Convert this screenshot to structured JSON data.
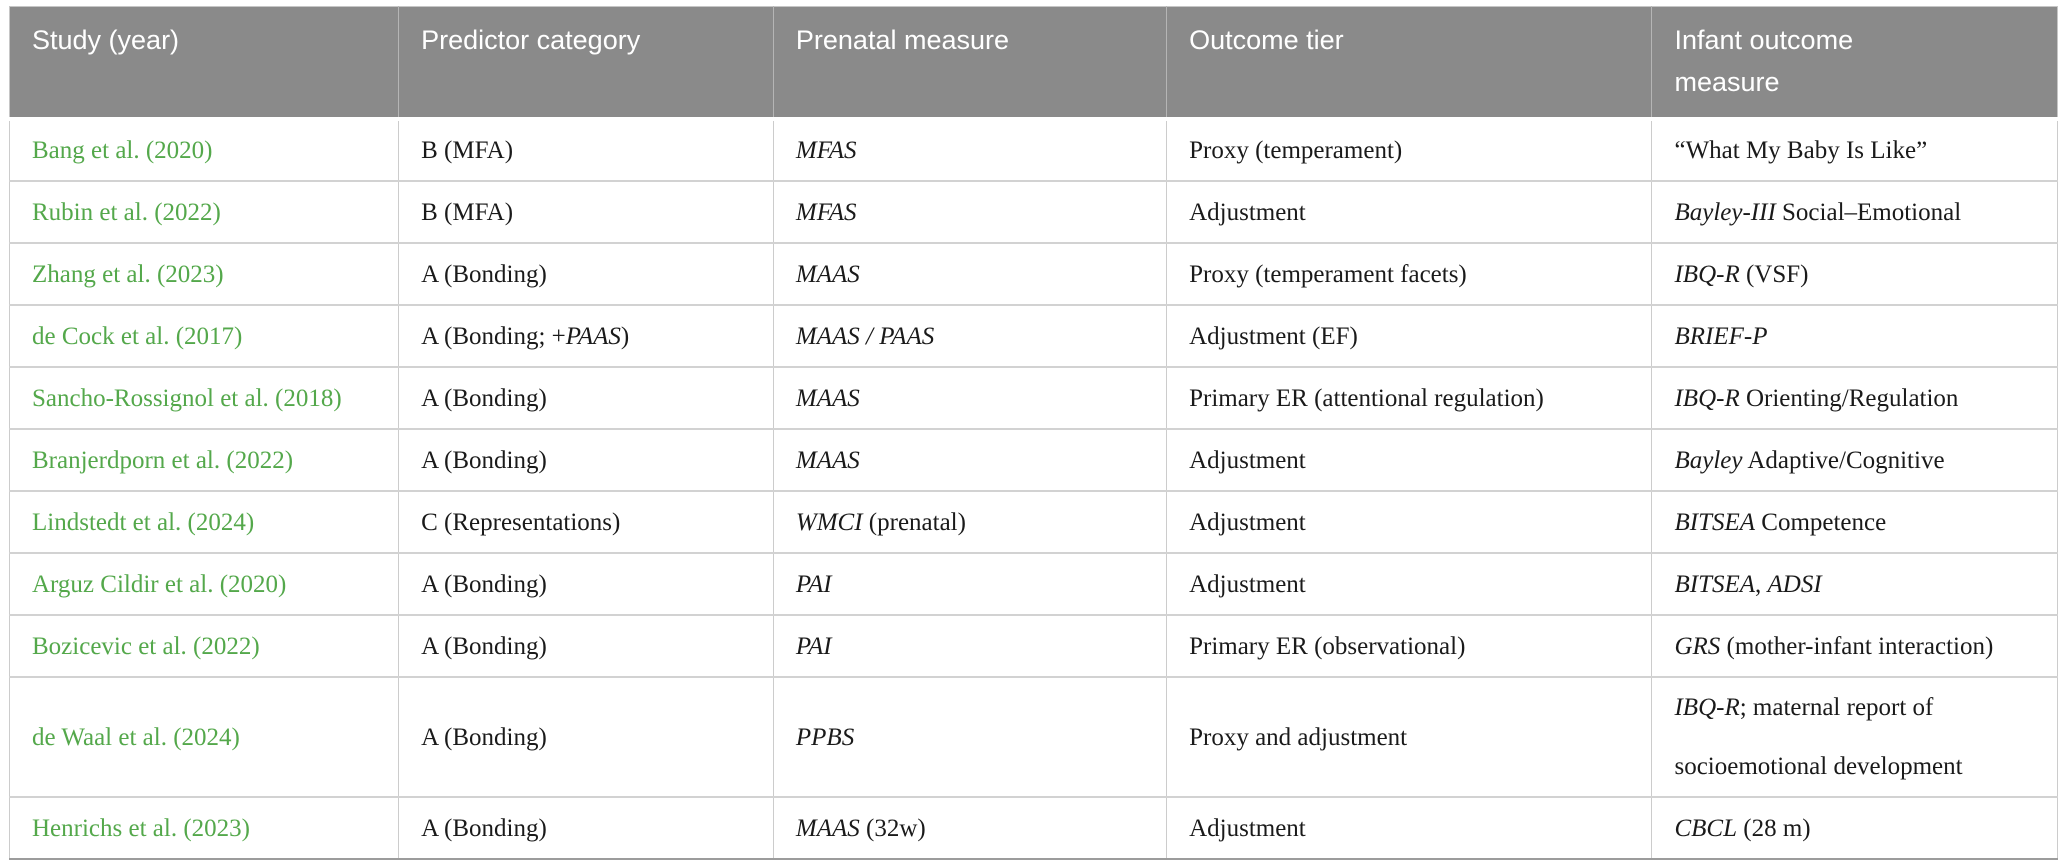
{
  "colors": {
    "header_bg": "#8a8a8a",
    "header_text": "#ffffff",
    "link_green": "#54a84b",
    "body_text": "#1a1a1a",
    "row_border": "#d2d2d2",
    "column_border": "#cccccc"
  },
  "table": {
    "columns": [
      {
        "key": "study",
        "label": "Study (year)"
      },
      {
        "key": "predictor",
        "label": "Predictor category"
      },
      {
        "key": "prenatal",
        "label": "Prenatal measure"
      },
      {
        "key": "outcome-tier",
        "label": "Outcome tier"
      },
      {
        "key": "infant-outcome",
        "label": "Infant outcome measure"
      }
    ],
    "rows": [
      {
        "study": "Bang et al. (2020)",
        "predictor": [
          {
            "t": "B (MFA)"
          }
        ],
        "prenatal": [
          {
            "t": "MFAS",
            "i": true
          }
        ],
        "outcome_tier": "Proxy (temperament)",
        "infant_outcome": [
          {
            "t": "“What My Baby Is Like”"
          }
        ]
      },
      {
        "study": "Rubin et al. (2022)",
        "predictor": [
          {
            "t": "B (MFA)"
          }
        ],
        "prenatal": [
          {
            "t": "MFAS",
            "i": true
          }
        ],
        "outcome_tier": "Adjustment",
        "infant_outcome": [
          {
            "t": "Bayley-III",
            "i": true
          },
          {
            "t": " Social–Emotional"
          }
        ]
      },
      {
        "study": "Zhang et al. (2023)",
        "predictor": [
          {
            "t": "A (Bonding)"
          }
        ],
        "prenatal": [
          {
            "t": "MAAS",
            "i": true
          }
        ],
        "outcome_tier": "Proxy (temperament facets)",
        "infant_outcome": [
          {
            "t": "IBQ-R",
            "i": true
          },
          {
            "t": " (VSF)"
          }
        ]
      },
      {
        "study": "de Cock et al. (2017)",
        "predictor": [
          {
            "t": "A (Bonding; +"
          },
          {
            "t": "PAAS",
            "i": true
          },
          {
            "t": ")"
          }
        ],
        "prenatal": [
          {
            "t": "MAAS / PAAS",
            "i": true
          }
        ],
        "outcome_tier": "Adjustment (EF)",
        "infant_outcome": [
          {
            "t": "BRIEF-P",
            "i": true
          }
        ]
      },
      {
        "study": "Sancho-Rossignol et al. (2018)",
        "predictor": [
          {
            "t": "A (Bonding)"
          }
        ],
        "prenatal": [
          {
            "t": "MAAS",
            "i": true
          }
        ],
        "outcome_tier": "Primary ER (attentional regulation)",
        "infant_outcome": [
          {
            "t": "IBQ-R",
            "i": true
          },
          {
            "t": " Orienting/Regulation"
          }
        ]
      },
      {
        "study": "Branjerdporn et al. (2022)",
        "predictor": [
          {
            "t": "A (Bonding)"
          }
        ],
        "prenatal": [
          {
            "t": "MAAS",
            "i": true
          }
        ],
        "outcome_tier": "Adjustment",
        "infant_outcome": [
          {
            "t": "Bayley",
            "i": true
          },
          {
            "t": " Adaptive/Cognitive"
          }
        ]
      },
      {
        "study": "Lindstedt et al. (2024)",
        "predictor": [
          {
            "t": "C (Representations)"
          }
        ],
        "prenatal": [
          {
            "t": "WMCI",
            "i": true
          },
          {
            "t": " (prenatal)"
          }
        ],
        "outcome_tier": "Adjustment",
        "infant_outcome": [
          {
            "t": "BITSEA",
            "i": true
          },
          {
            "t": " Competence"
          }
        ]
      },
      {
        "study": "Arguz Cildir et al. (2020)",
        "predictor": [
          {
            "t": "A (Bonding)"
          }
        ],
        "prenatal": [
          {
            "t": "PAI",
            "i": true
          }
        ],
        "outcome_tier": "Adjustment",
        "infant_outcome": [
          {
            "t": "BITSEA",
            "i": true
          },
          {
            "t": ", "
          },
          {
            "t": "ADSI",
            "i": true
          }
        ]
      },
      {
        "study": "Bozicevic et al. (2022)",
        "predictor": [
          {
            "t": "A (Bonding)"
          }
        ],
        "prenatal": [
          {
            "t": "PAI",
            "i": true
          }
        ],
        "outcome_tier": "Primary ER (observational)",
        "infant_outcome": [
          {
            "t": "GRS",
            "i": true
          },
          {
            "t": " (mother-infant interaction)"
          }
        ]
      },
      {
        "study": "de Waal et al. (2024)",
        "predictor": [
          {
            "t": "A (Bonding)"
          }
        ],
        "prenatal": [
          {
            "t": "PPBS",
            "i": true
          }
        ],
        "outcome_tier": "Proxy and adjustment",
        "infant_outcome": [
          {
            "t": "IBQ-R",
            "i": true
          },
          {
            "t": "; maternal report of socioemotional development"
          }
        ]
      },
      {
        "study": "Henrichs et al. (2023)",
        "predictor": [
          {
            "t": "A (Bonding)"
          }
        ],
        "prenatal": [
          {
            "t": "MAAS",
            "i": true
          },
          {
            "t": " (32w)"
          }
        ],
        "outcome_tier": "Adjustment",
        "infant_outcome": [
          {
            "t": "CBCL",
            "i": true
          },
          {
            "t": " (28 m)"
          }
        ]
      }
    ]
  }
}
